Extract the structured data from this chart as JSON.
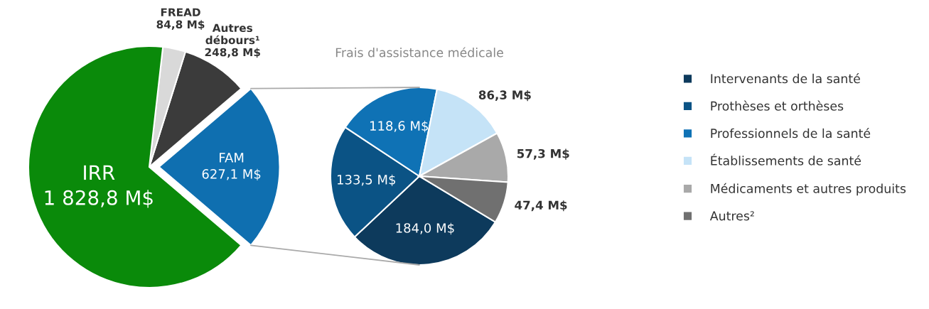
{
  "chart_data": [
    {
      "type": "pie",
      "categories": [
        "FAM",
        "Autres débours¹",
        "FREAD",
        "IRR"
      ],
      "values": [
        627.1,
        248.8,
        84.8,
        1828.8
      ],
      "colors": [
        "#0f6fb0",
        "#3b3b3b",
        "#d9d9d9",
        "#0a8a0a"
      ],
      "value_labels": [
        "627,1 M$",
        "248,8 M$",
        "84,8 M$",
        "1 828,8 M$"
      ]
    },
    {
      "type": "pie",
      "title": "Frais d'assistance médicale",
      "categories": [
        "Intervenants de la santé",
        "Prothèses et orthèses",
        "Professionnels de la santé",
        "Établissements de santé",
        "Médicaments et autres produits",
        "Autres²"
      ],
      "values": [
        184.0,
        133.5,
        118.6,
        86.3,
        57.3,
        47.4
      ],
      "colors": [
        "#0d3a5c",
        "#0b5385",
        "#0f72b5",
        "#c5e3f7",
        "#a9a9a9",
        "#707070"
      ],
      "value_labels": [
        "184,0 M$",
        "133,5 M$",
        "118,6 M$",
        "86,3 M$",
        "57,3 M$",
        "47,4 M$"
      ],
      "legend": "right"
    }
  ]
}
